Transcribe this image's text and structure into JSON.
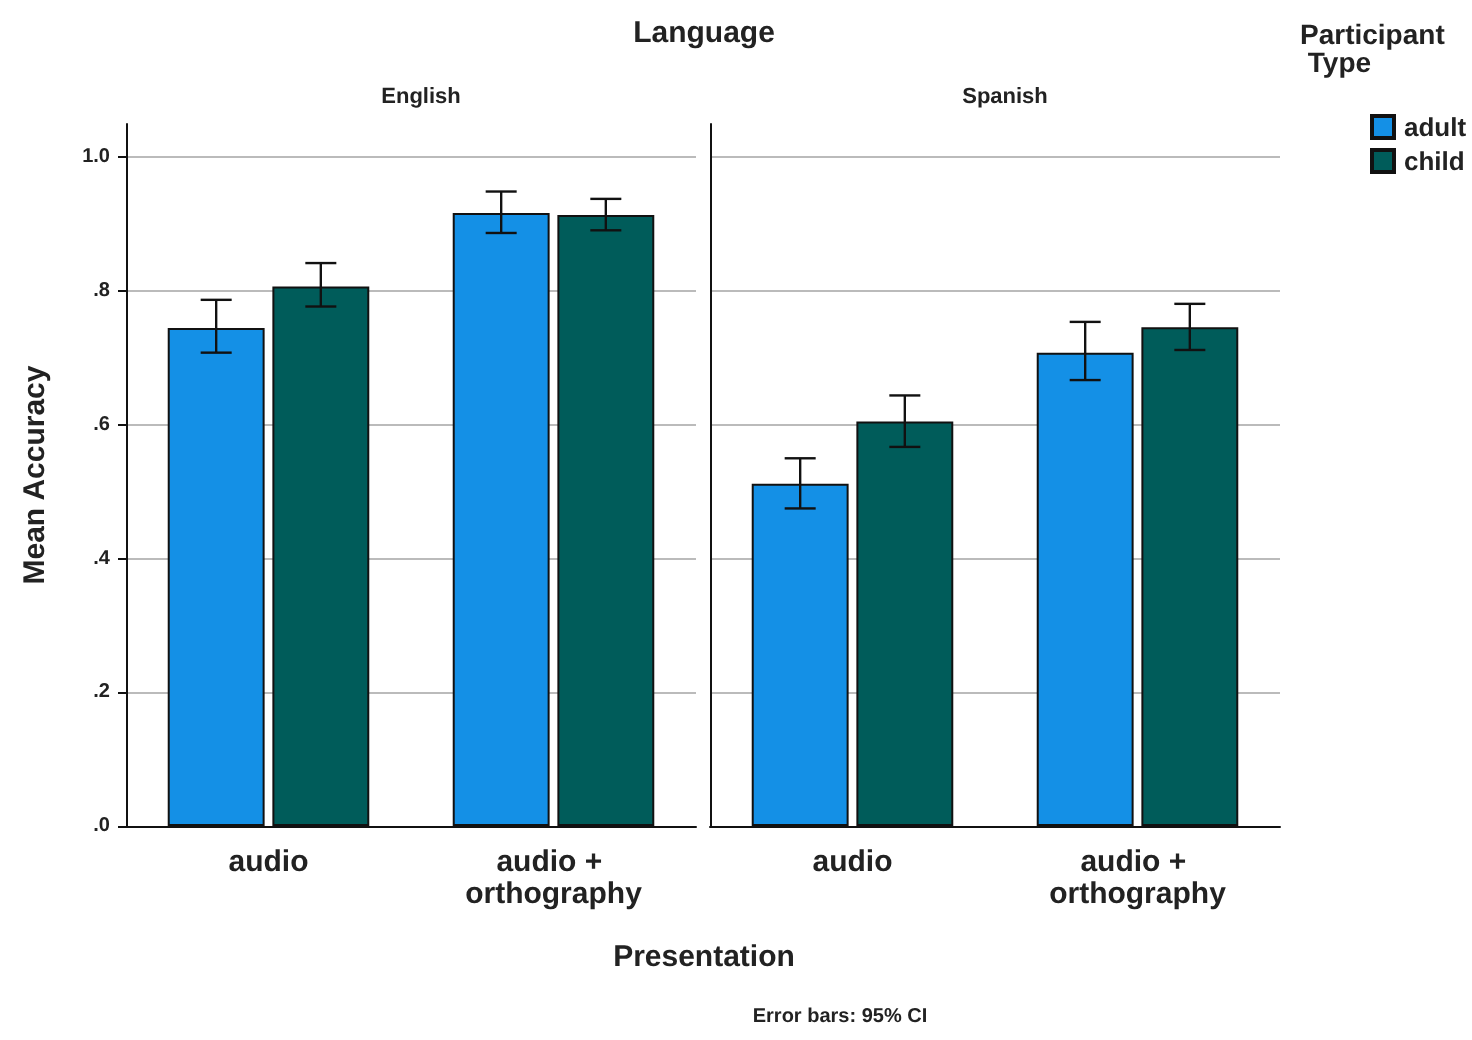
{
  "chart_data": [
    {
      "type": "bar",
      "title": "English",
      "ylabel": "Mean Accuracy",
      "xlabel": "Presentation",
      "annotations": [
        "Language",
        "Error bars: 95% CI"
      ],
      "categories": [
        "audio",
        "audio + orthography"
      ],
      "series": [
        {
          "color": "#1490e6",
          "values": [
            0.745,
            0.917
          ],
          "errors": [
            [
              0.708,
              0.787
            ],
            [
              0.887,
              0.949
            ]
          ]
        },
        {
          "color": "#005c5a",
          "values": [
            0.807,
            0.914
          ],
          "errors": [
            [
              0.777,
              0.842
            ],
            [
              0.891,
              0.938
            ]
          ]
        }
      ],
      "ylim": [
        0,
        1.05
      ],
      "yticks": [
        {
          "value": 0,
          "label": ".0"
        },
        {
          "value": 0.2,
          "label": ".2"
        },
        {
          "value": 0.4,
          "label": ".4"
        },
        {
          "value": 0.6,
          "label": ".6"
        },
        {
          "value": 0.8,
          "label": ".8"
        },
        {
          "value": 1.0,
          "label": "1.0"
        }
      ],
      "grid": "y",
      "legend": false
    },
    {
      "type": "bar",
      "title": "Spanish",
      "legend_title": "Participant Type",
      "categories": [
        "audio",
        "audio + orthography"
      ],
      "series": [
        {
          "name": "adult",
          "color": "#1490e6",
          "values": [
            0.512,
            0.708
          ],
          "errors": [
            [
              0.475,
              0.55
            ],
            [
              0.667,
              0.754
            ]
          ]
        },
        {
          "name": "child",
          "color": "#005c5a",
          "values": [
            0.605,
            0.746
          ],
          "errors": [
            [
              0.567,
              0.644
            ],
            [
              0.712,
              0.781
            ]
          ]
        }
      ],
      "ylim": [
        0,
        1.05
      ],
      "yticks": [
        0,
        0.2,
        0.4,
        0.6,
        0.8,
        1.0
      ],
      "grid": "y",
      "legend": "top right",
      "tick_labels": "x"
    }
  ]
}
